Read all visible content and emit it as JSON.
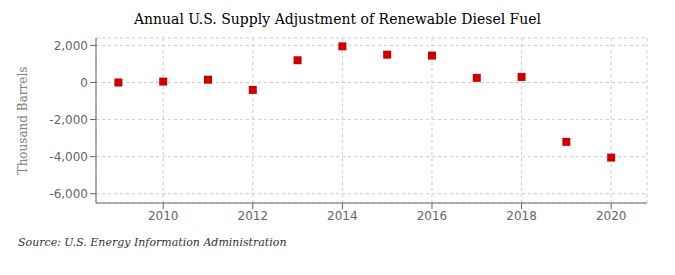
{
  "chart_data": {
    "type": "scatter",
    "title": "Annual U.S. Supply Adjustment of Renewable Diesel Fuel",
    "ylabel": "Thousand Barrels",
    "annotations": [
      "Source: U.S. Energy Information Administration"
    ],
    "x": [
      2009,
      2010,
      2011,
      2012,
      2013,
      2014,
      2015,
      2016,
      2017,
      2018,
      2019,
      2020
    ],
    "values": [
      0,
      50,
      150,
      -400,
      1200,
      1950,
      1500,
      1450,
      250,
      300,
      -3200,
      -4050
    ],
    "color": "#cc0000",
    "marker": "square",
    "xlim": [
      2008.5,
      2020.8
    ],
    "xticks": [
      2010,
      2012,
      2014,
      2016,
      2018,
      2020
    ],
    "ylim": [
      -6500,
      2400
    ],
    "yticks": [
      {
        "value": -6000,
        "label": "-6,000"
      },
      {
        "value": -4000,
        "label": "-4,000"
      },
      {
        "value": -2000,
        "label": "-2,000"
      },
      0,
      {
        "value": 2000,
        "label": "2,000"
      }
    ],
    "grid": true
  }
}
